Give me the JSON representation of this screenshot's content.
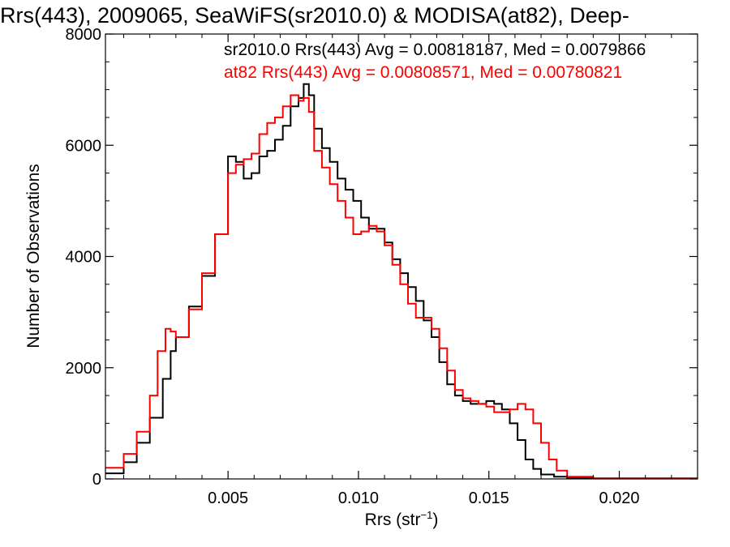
{
  "chart_data": {
    "type": "line",
    "step": true,
    "title": "Rrs(443), 2009065, SeaWiFS(sr2010.0) & MODISA(at82), Deep-",
    "xlabel": {
      "base": "Rrs (str",
      "sup": "−1",
      "close": ")"
    },
    "ylabel": "Number of Observations",
    "xlim": [
      0.0003,
      0.023
    ],
    "ylim": [
      0,
      8000
    ],
    "xticks": [
      0.005,
      0.01,
      0.015,
      0.02
    ],
    "xtick_labels": [
      "0.005",
      "0.010",
      "0.015",
      "0.020"
    ],
    "yticks": [
      0,
      2000,
      4000,
      6000,
      8000
    ],
    "ytick_labels": [
      "0",
      "2000",
      "4000",
      "6000",
      "8000"
    ],
    "grid": false,
    "annotations": [
      {
        "text": "sr2010.0 Rrs(443) Avg = 0.00818187, Med = 0.0079866",
        "color": "#000000"
      },
      {
        "text": "at82 Rrs(443) Avg = 0.00808571, Med = 0.00780821",
        "color": "#ff0000"
      }
    ],
    "series": [
      {
        "name": "sr2010.0",
        "color": "#000000",
        "x": [
          0.0003,
          0.001,
          0.0015,
          0.002,
          0.0025,
          0.0028,
          0.003,
          0.0035,
          0.004,
          0.0045,
          0.005,
          0.0053,
          0.0056,
          0.0059,
          0.0062,
          0.0065,
          0.0068,
          0.0071,
          0.0074,
          0.0077,
          0.0079,
          0.0081,
          0.0083,
          0.0086,
          0.0089,
          0.0092,
          0.0095,
          0.0098,
          0.0101,
          0.0104,
          0.0107,
          0.011,
          0.0113,
          0.0116,
          0.0119,
          0.0122,
          0.0125,
          0.0128,
          0.0131,
          0.0134,
          0.0137,
          0.014,
          0.0143,
          0.0146,
          0.0149,
          0.0152,
          0.0155,
          0.0158,
          0.0161,
          0.0164,
          0.0167,
          0.017,
          0.0175,
          0.018,
          0.019,
          0.02,
          0.023
        ],
        "y": [
          100,
          300,
          650,
          1100,
          1800,
          2300,
          2550,
          3100,
          3650,
          4400,
          5800,
          5700,
          5400,
          5500,
          5800,
          5900,
          6100,
          6350,
          6700,
          6850,
          7100,
          6900,
          6300,
          5950,
          5700,
          5400,
          5200,
          5000,
          4700,
          4500,
          4500,
          4250,
          3950,
          3700,
          3450,
          3200,
          2850,
          2550,
          2100,
          1700,
          1500,
          1400,
          1350,
          1350,
          1400,
          1350,
          1250,
          1000,
          700,
          350,
          180,
          80,
          40,
          20,
          10,
          10,
          10
        ]
      },
      {
        "name": "at82",
        "color": "#ff0000",
        "x": [
          0.0003,
          0.001,
          0.0015,
          0.002,
          0.0023,
          0.0026,
          0.0028,
          0.003,
          0.0035,
          0.004,
          0.0045,
          0.005,
          0.0053,
          0.0056,
          0.0059,
          0.0062,
          0.0065,
          0.0068,
          0.0071,
          0.0074,
          0.0077,
          0.0079,
          0.0081,
          0.0083,
          0.0086,
          0.0089,
          0.0092,
          0.0095,
          0.0098,
          0.0101,
          0.0104,
          0.0107,
          0.011,
          0.0113,
          0.0116,
          0.0119,
          0.0122,
          0.0125,
          0.0128,
          0.0131,
          0.0134,
          0.0137,
          0.014,
          0.0143,
          0.0146,
          0.0149,
          0.0152,
          0.0155,
          0.0158,
          0.0161,
          0.0164,
          0.0167,
          0.017,
          0.0173,
          0.0176,
          0.018,
          0.019,
          0.02,
          0.023
        ],
        "y": [
          200,
          450,
          850,
          1500,
          2300,
          2700,
          2650,
          2550,
          3050,
          3700,
          4400,
          5500,
          5650,
          5750,
          5850,
          6200,
          6400,
          6500,
          6700,
          6900,
          6800,
          6850,
          6600,
          5900,
          5600,
          5300,
          5000,
          4700,
          4400,
          4450,
          4550,
          4450,
          4200,
          3850,
          3500,
          3150,
          2900,
          2900,
          2700,
          2350,
          1950,
          1600,
          1450,
          1400,
          1350,
          1300,
          1200,
          1200,
          1250,
          1350,
          1250,
          1000,
          650,
          350,
          150,
          40,
          10,
          10,
          10
        ]
      }
    ]
  }
}
